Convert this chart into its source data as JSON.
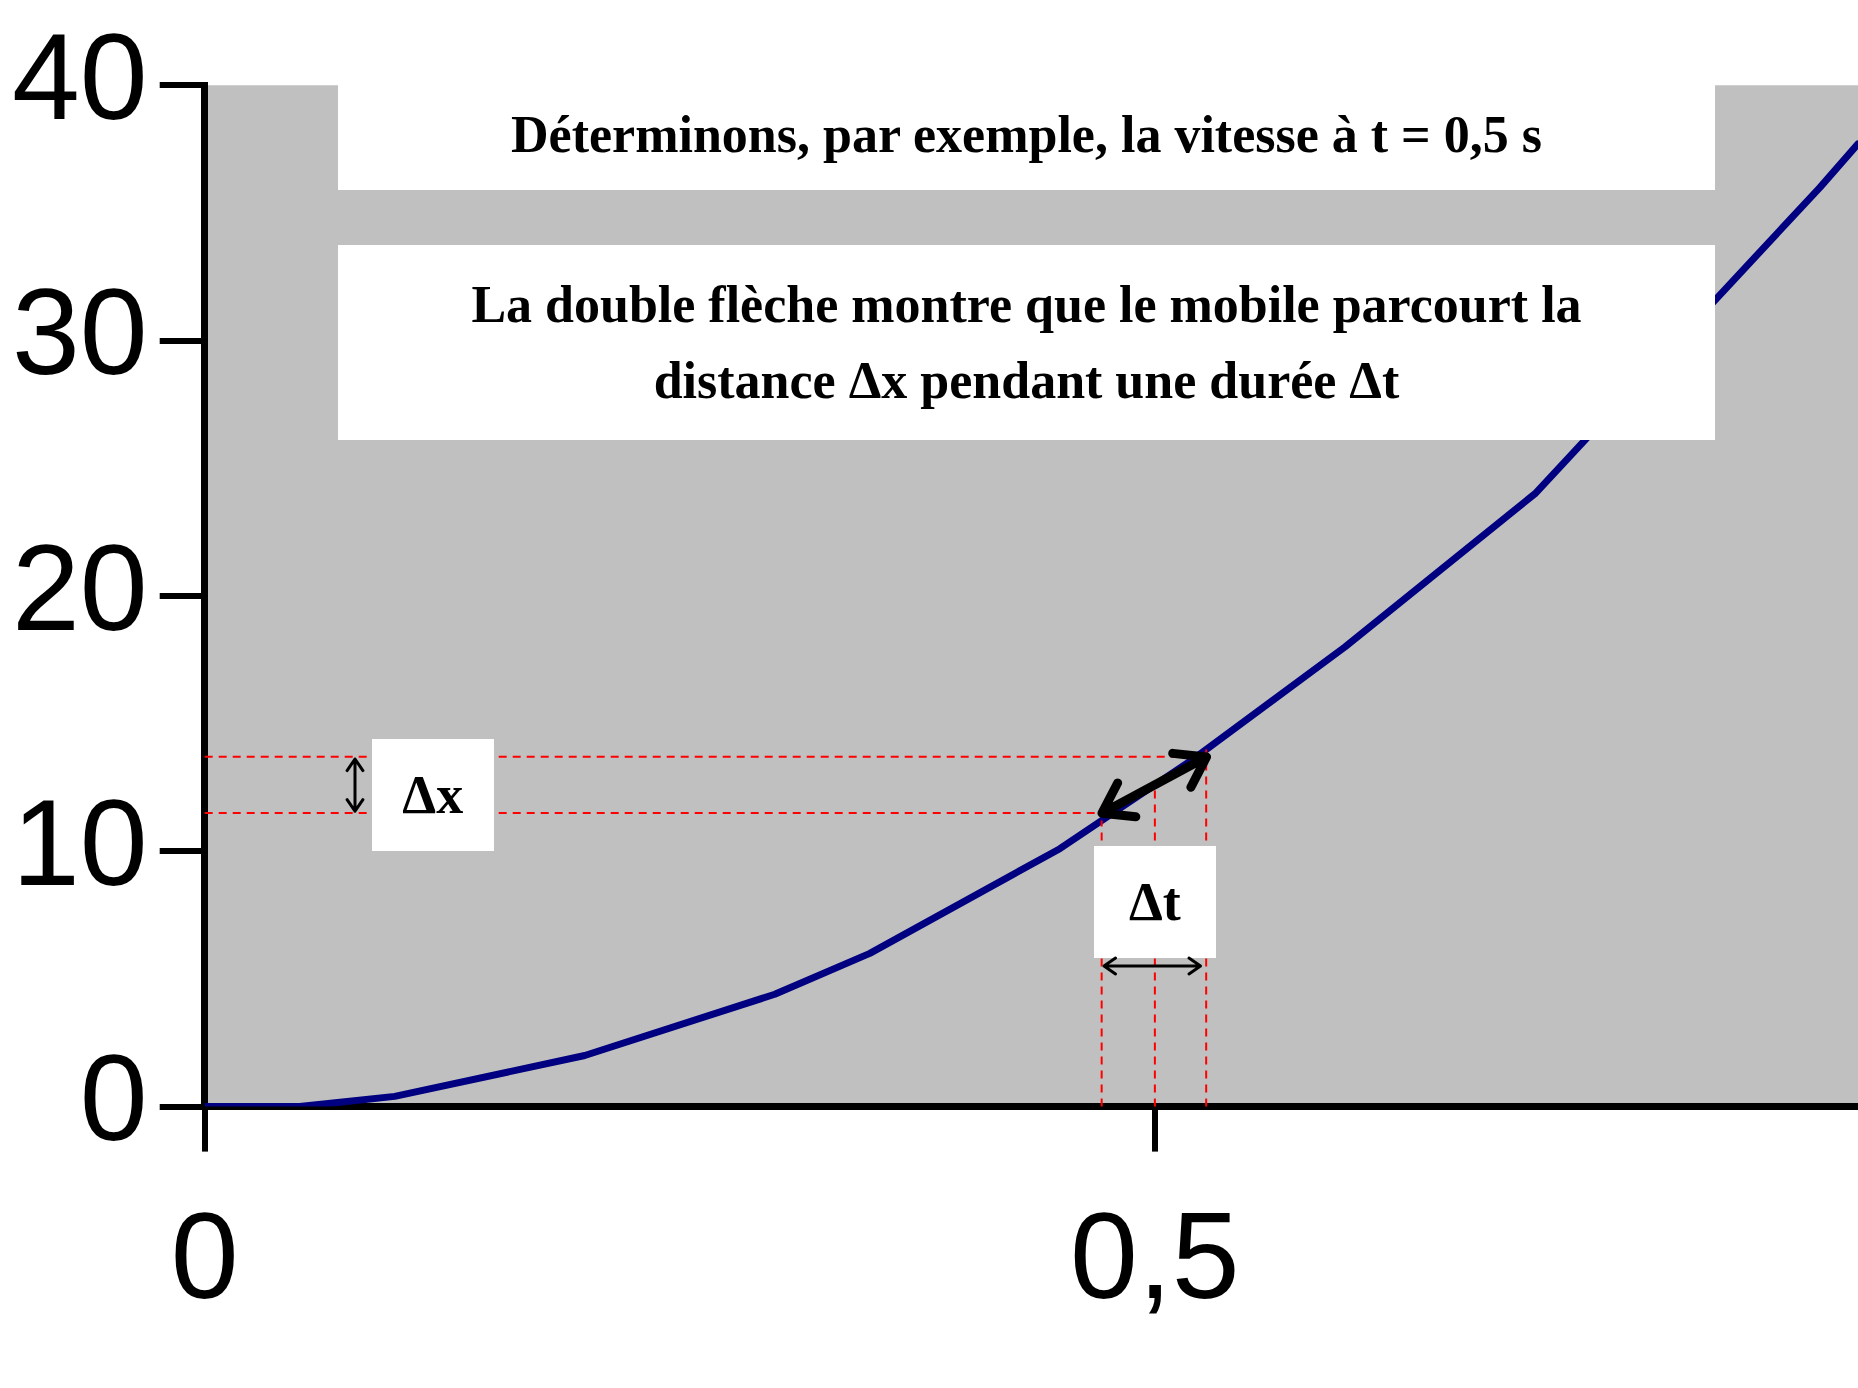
{
  "chart_data": {
    "type": "line",
    "x": [
      0,
      0.05,
      0.1,
      0.2,
      0.3,
      0.35,
      0.45,
      0.52,
      0.6,
      0.7,
      0.78,
      0.85,
      0.87
    ],
    "series": [
      {
        "color": "#000080",
        "values": [
          0,
          0,
          0.4,
          2,
          4.4,
          6,
          10.1,
          13.6,
          18,
          24,
          null,
          36,
          37.7
        ]
      }
    ],
    "xlim": [
      0,
      0.87
    ],
    "xticks": [
      0,
      {
        "value": 0.5,
        "label": "0,5"
      }
    ],
    "ylim": [
      0,
      40
    ],
    "yticks": [
      0,
      10,
      20,
      30,
      40
    ],
    "grid": false,
    "legend": false,
    "marker": "none",
    "line_style": "solid",
    "ref_lines": [
      {
        "axis": "y",
        "value": 13.7,
        "color": "#ff0000",
        "line_style": "dashed"
      },
      {
        "axis": "y",
        "value": 11.5,
        "color": "#ff0000",
        "line_style": "dashed"
      },
      {
        "axis": "x",
        "value": 0.472,
        "color": "#ff0000",
        "line_style": "dashed"
      },
      {
        "axis": "x",
        "value": 0.5,
        "color": "#ff0000",
        "line_style": "dashed"
      },
      {
        "axis": "x",
        "value": 0.527,
        "color": "#ff0000",
        "line_style": "dashed"
      }
    ],
    "annotations": [
      "Déterminons, par exemple, la vitesse à t = 0,5 s",
      "La double flèche montre que le mobile parcourt la distance Δx pendant une durée Δt",
      "Δx",
      "Δt"
    ]
  }
}
